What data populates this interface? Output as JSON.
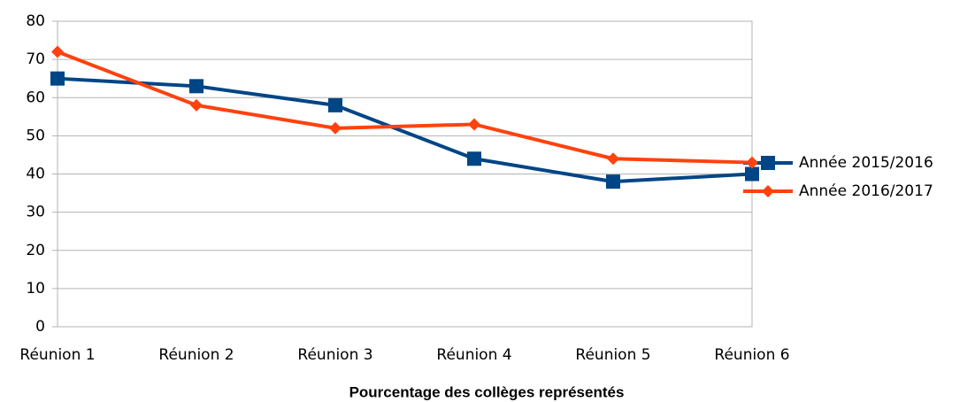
{
  "chart_data": {
    "type": "line",
    "x_label": "Pourcentage des collèges représentés",
    "categories": [
      "Réunion 1",
      "Réunion 2",
      "Réunion 3",
      "Réunion 4",
      "Réunion 5",
      "Réunion 6"
    ],
    "series": [
      {
        "name": "Année 2015/2016",
        "color": "#004586",
        "marker": "square",
        "values": [
          65,
          63,
          58,
          44,
          38,
          40
        ]
      },
      {
        "name": "Année 2016/2017",
        "color": "#ff420e",
        "marker": "diamond",
        "values": [
          72,
          58,
          52,
          53,
          44,
          43
        ]
      }
    ],
    "ylim": [
      0,
      80
    ],
    "yticks": [
      0,
      10,
      20,
      30,
      40,
      50,
      60,
      70,
      80
    ],
    "grid": true,
    "legend": "right"
  }
}
